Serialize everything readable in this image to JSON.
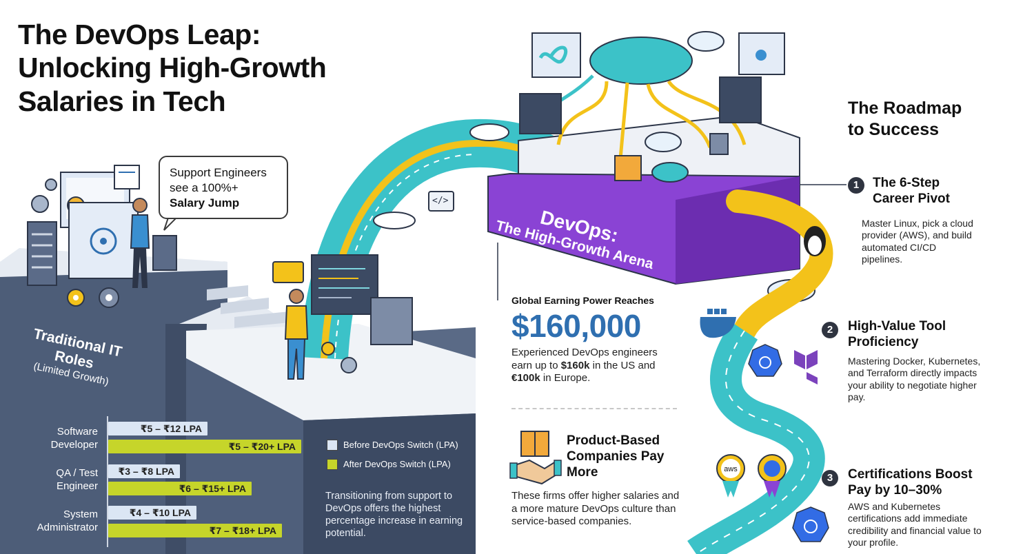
{
  "title": {
    "line1": "The DevOps Leap:",
    "line2": "Unlocking High-Growth",
    "line3": "Salaries in Tech"
  },
  "speech_bubble": {
    "line1": "Support Engineers",
    "line2": "see a 100%+",
    "line3": "Salary Jump"
  },
  "traditional": {
    "title": "Traditional IT Roles",
    "subtitle": "(Limited Growth)"
  },
  "salary_chart": {
    "roles": [
      {
        "label": "Software Developer",
        "before": "₹5 – ₹12 LPA",
        "after": "₹5 – ₹20+ LPA"
      },
      {
        "label": "QA / Test Engineer",
        "before": "₹3 – ₹8 LPA",
        "after": "₹6 – ₹15+ LPA"
      },
      {
        "label": "System Administrator",
        "before": "₹4 – ₹10 LPA",
        "after": "₹7 – ₹18+ LPA"
      }
    ],
    "legend_before": "Before DevOps Switch (LPA)",
    "legend_after": "After DevOps Switch (LPA)",
    "note": "Transitioning from support to DevOps offers the highest percentage increase in earning potential."
  },
  "arena": {
    "line1": "DevOps:",
    "line2": "The High-Growth Arena"
  },
  "earning": {
    "intro": "Global Earning Power Reaches",
    "value": "$160,000",
    "desc_a": "Experienced DevOps engineers earn up to ",
    "desc_b": "$160k",
    "desc_c": " in the US and ",
    "desc_d": "€100k",
    "desc_e": " in Europe."
  },
  "product": {
    "title": "Product-Based Companies Pay More",
    "desc": "These firms offer higher salaries and a more mature DevOps culture than service-based companies."
  },
  "roadmap": {
    "title_line1": "The Roadmap",
    "title_line2": "to Success",
    "steps": [
      {
        "num": "1",
        "title_line1": "The 6-Step",
        "title_line2": "Career Pivot",
        "desc": "Master Linux, pick a cloud provider (AWS), and build automated CI/CD pipelines."
      },
      {
        "num": "2",
        "title_line1": "High-Value Tool",
        "title_line2": "Proficiency",
        "desc": "Mastering Docker, Kubernetes, and Terraform directly impacts your ability to negotiate higher pay."
      },
      {
        "num": "3",
        "title_line1": "Certifications Boost",
        "title_line2": "Pay by 10–30%",
        "desc": "AWS and Kubernetes certifications add immediate credibility and financial value to your profile."
      }
    ]
  },
  "badges": {
    "aws": "aws",
    "code_tag": "</>"
  },
  "colors": {
    "slate": "#4d5d78",
    "purple": "#8a43d4",
    "teal": "#3cc2c8",
    "yellow": "#f3c21a",
    "chart_after": "#c6d52a",
    "chart_before": "#dbe6f4",
    "earning_blue": "#2f6fb0"
  }
}
